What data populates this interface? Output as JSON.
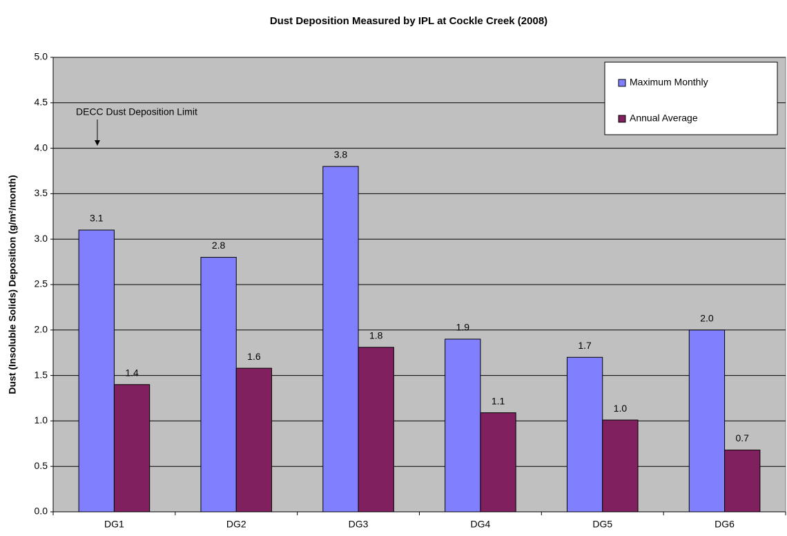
{
  "chart_data": {
    "type": "bar",
    "title": "Dust Deposition Measured by IPL at Cockle Creek (2008)",
    "y_label": "Dust (Insoluble Solids) Deposition (g/m²/month)",
    "annotation": "DECC Dust Deposition Limit",
    "categories": [
      "DG1",
      "DG2",
      "DG3",
      "DG4",
      "DG5",
      "DG6"
    ],
    "series": [
      {
        "name": "Maximum Monthly",
        "color": "#8080ff",
        "values": [
          3.1,
          2.8,
          3.8,
          1.9,
          1.7,
          2.0
        ],
        "value_labels": [
          "3.1",
          "2.8",
          "3.8",
          "1.9",
          "1.7",
          "2.0"
        ]
      },
      {
        "name": "Annual Average",
        "color": "#80205f",
        "values": [
          1.4,
          1.58,
          1.81,
          1.09,
          1.01,
          0.68
        ],
        "value_labels": [
          "1.4",
          "1.6",
          "1.8",
          "1.1",
          "1.0",
          "0.7"
        ]
      }
    ],
    "ylim": [
      0,
      5
    ],
    "yticks": [
      {
        "value": 0,
        "label": "0.0"
      },
      {
        "value": 0.5,
        "label": "0.5"
      },
      {
        "value": 1,
        "label": "1.0"
      },
      {
        "value": 1.5,
        "label": "1.5"
      },
      {
        "value": 2,
        "label": "2.0"
      },
      {
        "value": 2.5,
        "label": "2.5"
      },
      {
        "value": 3,
        "label": "3.0"
      },
      {
        "value": 3.5,
        "label": "3.5"
      },
      {
        "value": 4,
        "label": "4.0"
      },
      {
        "value": 4.5,
        "label": "4.5"
      },
      {
        "value": 5,
        "label": "5.0"
      }
    ],
    "grid": true,
    "legend": "upper right",
    "background": "#c0c0c0"
  }
}
